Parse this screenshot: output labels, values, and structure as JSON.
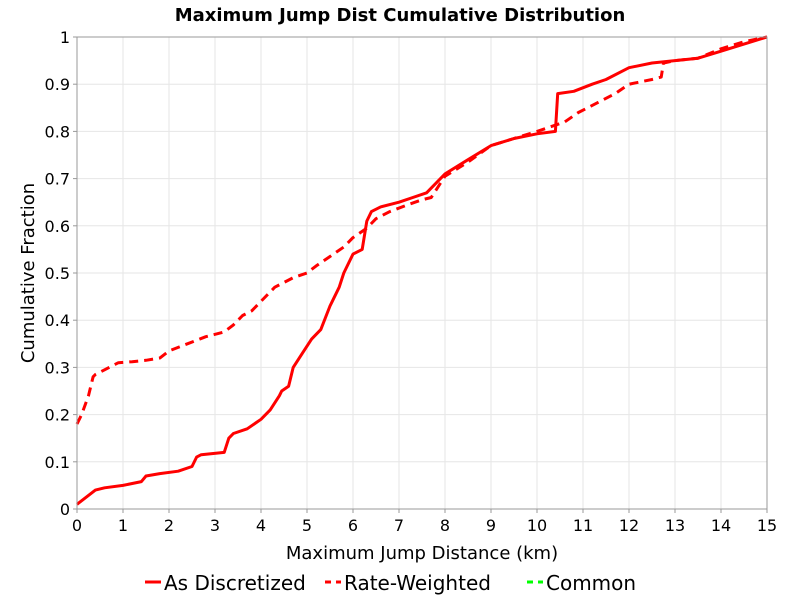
{
  "chart_data": {
    "type": "line",
    "title": "Maximum Jump Dist Cumulative Distribution",
    "xlabel": "Maximum Jump Distance (km)",
    "ylabel": "Cumulative Fraction",
    "xlim": [
      0,
      15
    ],
    "ylim": [
      0,
      1
    ],
    "x_ticks": [
      "0",
      "1",
      "2",
      "3",
      "4",
      "5",
      "6",
      "7",
      "8",
      "9",
      "10",
      "11",
      "12",
      "13",
      "14",
      "15"
    ],
    "y_ticks": [
      "0",
      "0.1",
      "0.2",
      "0.3",
      "0.4",
      "0.5",
      "0.6",
      "0.7",
      "0.8",
      "0.9",
      "1"
    ],
    "grid": true,
    "legend_position": "bottom",
    "series": [
      {
        "name": "As Discretized",
        "color": "#ff0000",
        "style": "solid",
        "x": [
          0.0,
          0.2,
          0.4,
          0.6,
          1.0,
          1.4,
          1.5,
          1.8,
          2.2,
          2.5,
          2.6,
          2.7,
          3.2,
          3.3,
          3.4,
          3.7,
          4.0,
          4.2,
          4.4,
          4.45,
          4.6,
          4.7,
          4.9,
          5.1,
          5.3,
          5.5,
          5.55,
          5.7,
          5.8,
          6.0,
          6.2,
          6.3,
          6.4,
          6.6,
          7.0,
          7.3,
          7.6,
          8.0,
          8.5,
          9.0,
          9.5,
          10.0,
          10.4,
          10.45,
          10.8,
          11.2,
          11.5,
          12.0,
          12.5,
          13.0,
          13.5,
          14.0,
          14.5,
          15.0
        ],
        "y": [
          0.01,
          0.025,
          0.04,
          0.045,
          0.05,
          0.058,
          0.07,
          0.075,
          0.08,
          0.09,
          0.11,
          0.115,
          0.12,
          0.15,
          0.16,
          0.17,
          0.19,
          0.21,
          0.24,
          0.25,
          0.26,
          0.3,
          0.33,
          0.36,
          0.38,
          0.43,
          0.44,
          0.47,
          0.5,
          0.54,
          0.55,
          0.61,
          0.63,
          0.64,
          0.65,
          0.66,
          0.67,
          0.71,
          0.74,
          0.77,
          0.785,
          0.795,
          0.8,
          0.88,
          0.885,
          0.9,
          0.91,
          0.935,
          0.945,
          0.95,
          0.955,
          0.97,
          0.985,
          1.0
        ]
      },
      {
        "name": "Rate-Weighted",
        "color": "#ff0000",
        "style": "dashed",
        "x": [
          0.0,
          0.1,
          0.25,
          0.35,
          0.4,
          0.6,
          0.9,
          1.2,
          1.5,
          1.8,
          2.0,
          2.4,
          2.8,
          3.2,
          3.4,
          3.6,
          3.8,
          4.0,
          4.3,
          4.7,
          5.0,
          5.2,
          5.5,
          5.8,
          6.0,
          6.3,
          6.5,
          6.8,
          7.2,
          7.5,
          7.7,
          8.0,
          8.5,
          9.0,
          9.5,
          10.0,
          10.3,
          10.6,
          10.9,
          11.3,
          11.7,
          12.0,
          12.5,
          12.7,
          12.75,
          13.0,
          13.5,
          14.0,
          14.5,
          15.0
        ],
        "y": [
          0.18,
          0.2,
          0.24,
          0.28,
          0.285,
          0.295,
          0.31,
          0.312,
          0.315,
          0.32,
          0.335,
          0.35,
          0.365,
          0.375,
          0.39,
          0.41,
          0.42,
          0.44,
          0.47,
          0.49,
          0.5,
          0.515,
          0.535,
          0.555,
          0.575,
          0.595,
          0.615,
          0.63,
          0.645,
          0.655,
          0.66,
          0.705,
          0.735,
          0.77,
          0.785,
          0.8,
          0.81,
          0.82,
          0.84,
          0.86,
          0.88,
          0.9,
          0.91,
          0.915,
          0.945,
          0.95,
          0.955,
          0.975,
          0.99,
          1.0
        ]
      },
      {
        "name": "Common",
        "color": "#00ff00",
        "style": "dashed",
        "x": [],
        "y": []
      }
    ]
  }
}
